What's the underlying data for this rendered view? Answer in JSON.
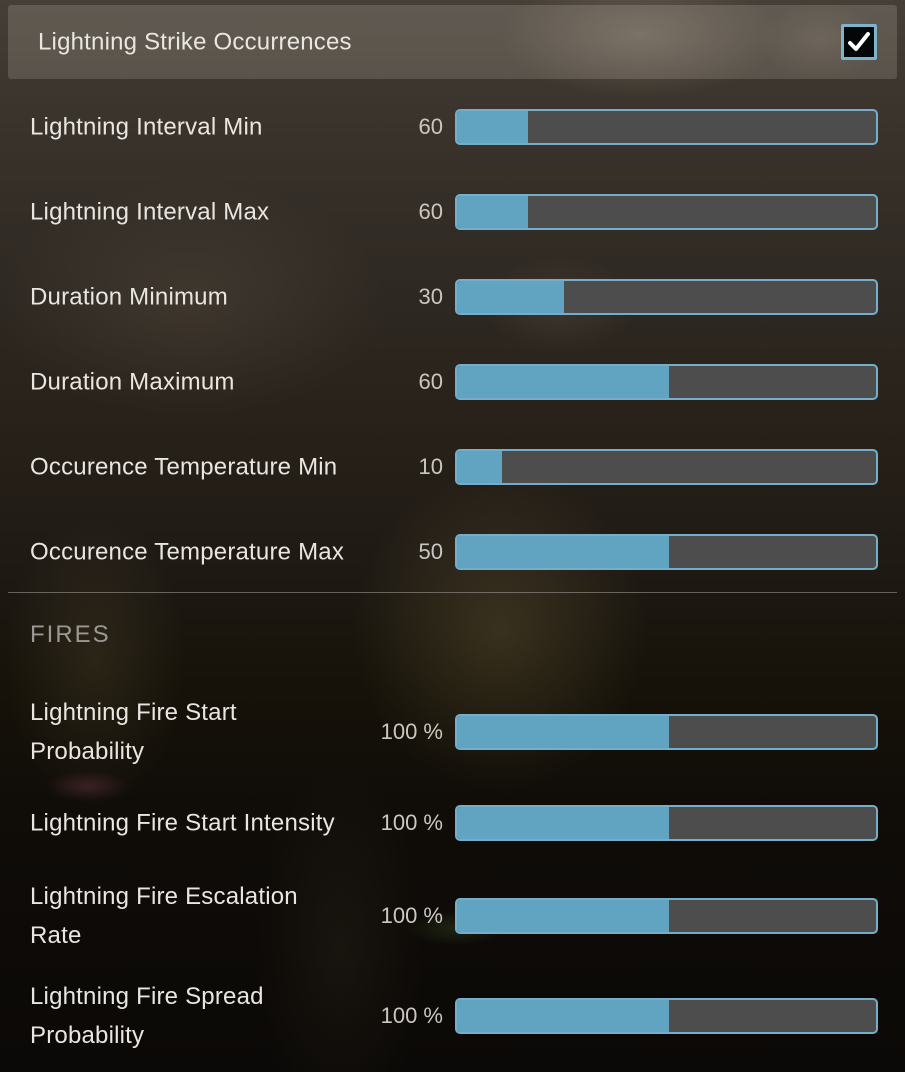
{
  "header": {
    "label": "Lightning Strike Occurrences",
    "checked": true
  },
  "section": {
    "fires_label": "FIRES"
  },
  "sliders": [
    {
      "id": "lightning-interval-min",
      "label": "Lightning Interval Min",
      "value": "60",
      "fill_pct": 17
    },
    {
      "id": "lightning-interval-max",
      "label": "Lightning Interval Max",
      "value": "60",
      "fill_pct": 17
    },
    {
      "id": "duration-minimum",
      "label": "Duration Minimum",
      "value": "30",
      "fill_pct": 25.5
    },
    {
      "id": "duration-maximum",
      "label": "Duration Maximum",
      "value": "60",
      "fill_pct": 50.5
    },
    {
      "id": "occurence-temperature-min",
      "label": "Occurence Temperature Min",
      "value": "10",
      "fill_pct": 10.7
    },
    {
      "id": "occurence-temperature-max",
      "label": "Occurence Temperature Max",
      "value": "50",
      "fill_pct": 50.5
    }
  ],
  "fire_sliders": [
    {
      "id": "lightning-fire-start-probability",
      "label": "Lightning Fire Start\nProbability",
      "value": "100 %",
      "fill_pct": 50.5
    },
    {
      "id": "lightning-fire-start-intensity",
      "label": "Lightning Fire Start Intensity",
      "value": "100 %",
      "fill_pct": 50.5
    },
    {
      "id": "lightning-fire-escalation-rate",
      "label": "Lightning Fire Escalation\nRate",
      "value": "100 %",
      "fill_pct": 50.5
    },
    {
      "id": "lightning-fire-spread-probability",
      "label": "Lightning Fire Spread\nProbability",
      "value": "100 %",
      "fill_pct": 50.5
    }
  ],
  "colors": {
    "accent_fill": "#61a4c1",
    "slider_border": "#74aecb",
    "track": "#4d4d4d",
    "checkbox_border": "#7db4cc"
  }
}
